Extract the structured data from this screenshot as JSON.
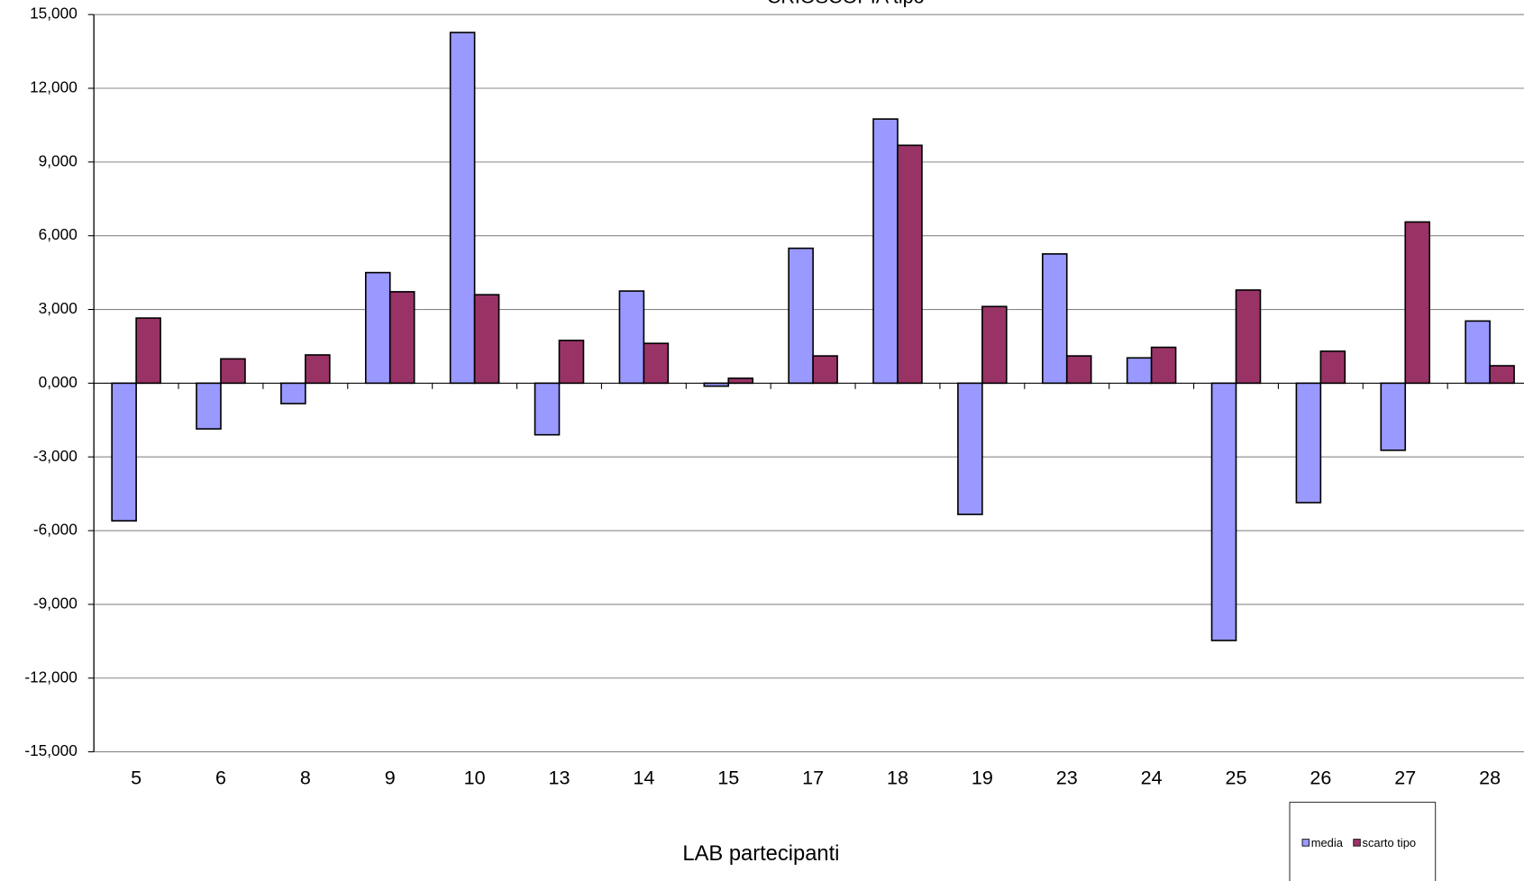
{
  "chart_data": {
    "type": "bar",
    "title": "CRIOSCOPIA tipo",
    "x_label": "LAB partecipanti",
    "categories": [
      "5",
      "6",
      "8",
      "9",
      "10",
      "13",
      "14",
      "15",
      "17",
      "18",
      "19",
      "23",
      "24",
      "25",
      "26",
      "27",
      "28"
    ],
    "series": [
      {
        "name": "media",
        "color": "#9999ff",
        "values": [
          -5.6,
          -1.86,
          -0.83,
          4.5,
          14.27,
          -2.1,
          3.75,
          -0.12,
          5.49,
          10.75,
          -5.34,
          5.26,
          1.03,
          -10.47,
          -4.86,
          -2.73,
          2.53
        ]
      },
      {
        "name": "scarto tipo",
        "color": "#993366",
        "values": [
          2.65,
          0.99,
          1.15,
          3.72,
          3.6,
          1.74,
          1.62,
          0.2,
          1.11,
          9.68,
          3.12,
          1.11,
          1.46,
          3.79,
          1.3,
          6.56,
          0.71
        ]
      }
    ],
    "ylim": [
      -15,
      15
    ],
    "yticks": [
      {
        "value": 15,
        "label": "15,000"
      },
      {
        "value": 12,
        "label": "12,000"
      },
      {
        "value": 9,
        "label": "9,000"
      },
      {
        "value": 6,
        "label": "6,000"
      },
      {
        "value": 3,
        "label": "3,000"
      },
      {
        "value": 0,
        "label": "0,000"
      },
      {
        "value": -3,
        "label": "-3,000"
      },
      {
        "value": -6,
        "label": "-6,000"
      },
      {
        "value": -9,
        "label": "-9,000"
      },
      {
        "value": -12,
        "label": "-12,000"
      },
      {
        "value": -15,
        "label": "-15,000"
      }
    ],
    "grid": true
  }
}
